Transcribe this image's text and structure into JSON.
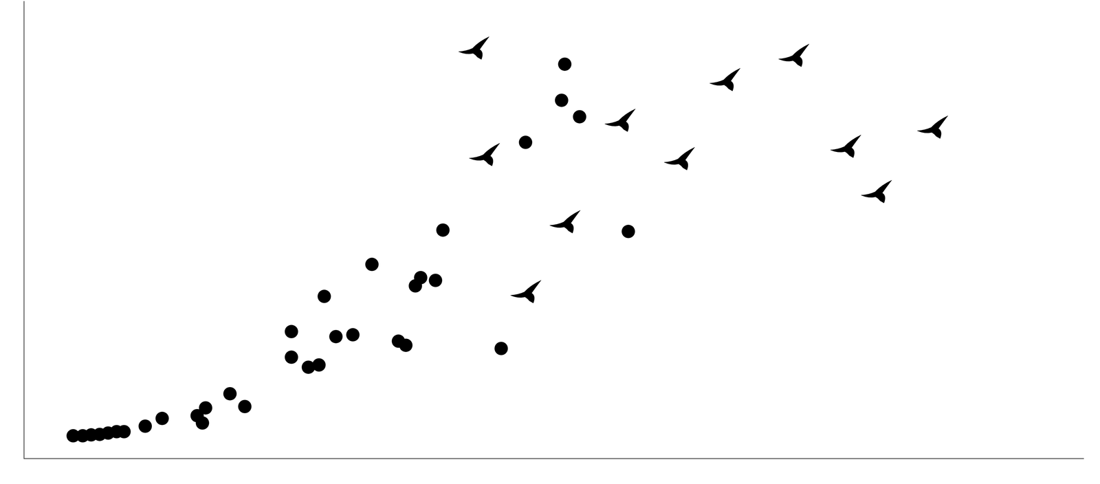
{
  "chart_data": {
    "type": "scatter",
    "xlim": [
      0,
      100
    ],
    "ylim": [
      0,
      100
    ],
    "xticks": [],
    "yticks": [],
    "grid": false,
    "tick_labels": false,
    "series": [
      {
        "marker": "circle",
        "color": "#000000",
        "x": [
          4.6,
          5.5,
          6.3,
          7.1,
          7.9,
          8.7,
          9.4,
          11.4,
          13.0,
          16.3,
          17.1,
          16.8,
          19.4,
          20.8,
          25.2,
          25.2,
          26.8,
          27.8,
          28.3,
          29.4,
          31.0,
          32.8,
          35.3,
          36.0,
          36.9,
          37.4,
          38.8,
          39.5,
          45.0,
          47.3,
          50.7,
          51.0,
          52.4,
          57.0
        ],
        "y": [
          4.9,
          4.9,
          5.1,
          5.2,
          5.5,
          5.8,
          5.8,
          7.0,
          8.7,
          9.3,
          11.0,
          7.7,
          14.1,
          11.3,
          22.1,
          27.7,
          19.9,
          20.4,
          35.4,
          26.6,
          27.0,
          42.4,
          25.6,
          24.7,
          37.7,
          39.5,
          38.9,
          49.9,
          24.0,
          69.1,
          78.3,
          86.2,
          74.7,
          49.6
        ]
      },
      {
        "marker": "bird",
        "color": "#000000",
        "x": [
          42.5,
          43.5,
          51.1,
          47.4,
          56.3,
          61.9,
          66.2,
          72.7,
          77.6,
          80.5,
          85.8
        ],
        "y": [
          89.3,
          66.0,
          51.3,
          36.0,
          73.5,
          65.1,
          82.4,
          87.7,
          67.8,
          57.9,
          72.0
        ]
      }
    ]
  }
}
